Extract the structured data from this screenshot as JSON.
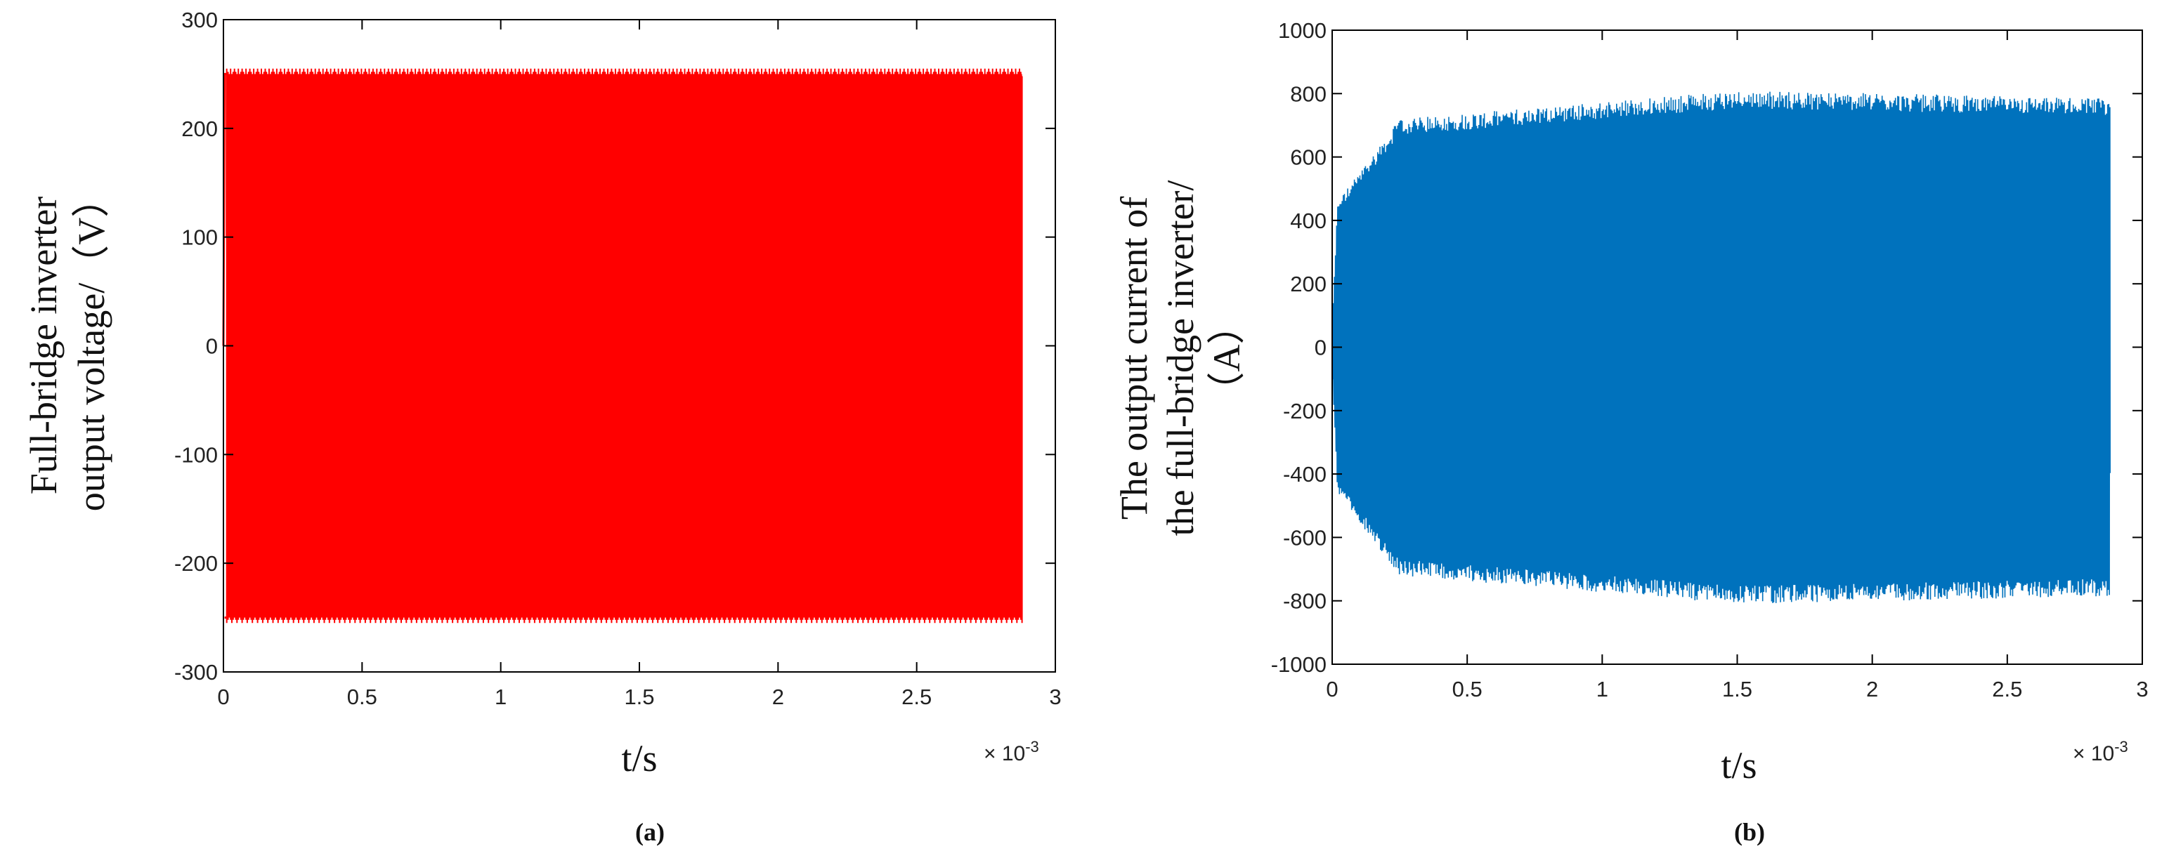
{
  "chart_data": [
    {
      "type": "line",
      "panel_label": "(a)",
      "xlabel": "t/s",
      "ylabel_lines": [
        "Full-bridge inverter",
        "output voltage/（V）"
      ],
      "x_multiplier": "× 10",
      "x_multiplier_exp": "-3",
      "xlim": [
        0,
        3
      ],
      "ylim": [
        -300,
        300
      ],
      "xticks": [
        0,
        0.5,
        1,
        1.5,
        2,
        2.5,
        3
      ],
      "xtick_labels": [
        "0",
        "0.5",
        "1",
        "1.5",
        "2",
        "2.5",
        "3"
      ],
      "yticks": [
        -300,
        -200,
        -100,
        0,
        100,
        200,
        300
      ],
      "ytick_labels": [
        "-300",
        "-200",
        "-100",
        "0",
        "100",
        "200",
        "300"
      ],
      "series": [
        {
          "color": "#ff0000",
          "waveform": "square",
          "x_range": [
            0,
            2.88
          ],
          "amplitude_max": 255,
          "amplitude_min": -255,
          "nominal_amplitude": 250
        }
      ]
    },
    {
      "type": "line",
      "panel_label": "(b)",
      "xlabel": "t/s",
      "ylabel_lines": [
        "The output current of",
        "the full-bridge inverter/",
        "（A）"
      ],
      "x_multiplier": "× 10",
      "x_multiplier_exp": "-3",
      "xlim": [
        0,
        3
      ],
      "ylim": [
        -1000,
        1000
      ],
      "xticks": [
        0,
        0.5,
        1,
        1.5,
        2,
        2.5,
        3
      ],
      "xtick_labels": [
        "0",
        "0.5",
        "1",
        "1.5",
        "2",
        "2.5",
        "3"
      ],
      "yticks": [
        -1000,
        -800,
        -600,
        -400,
        -200,
        0,
        200,
        400,
        600,
        800,
        1000
      ],
      "ytick_labels": [
        "-1000",
        "-800",
        "-600",
        "-400",
        "-200",
        "0",
        "200",
        "400",
        "600",
        "800",
        "1000"
      ],
      "series": [
        {
          "color": "#0072bd",
          "waveform": "oscillation",
          "x_range": [
            0,
            2.88
          ],
          "amplitude_max": 820,
          "amplitude_min": -830,
          "settled_amplitude": 790
        }
      ]
    }
  ]
}
